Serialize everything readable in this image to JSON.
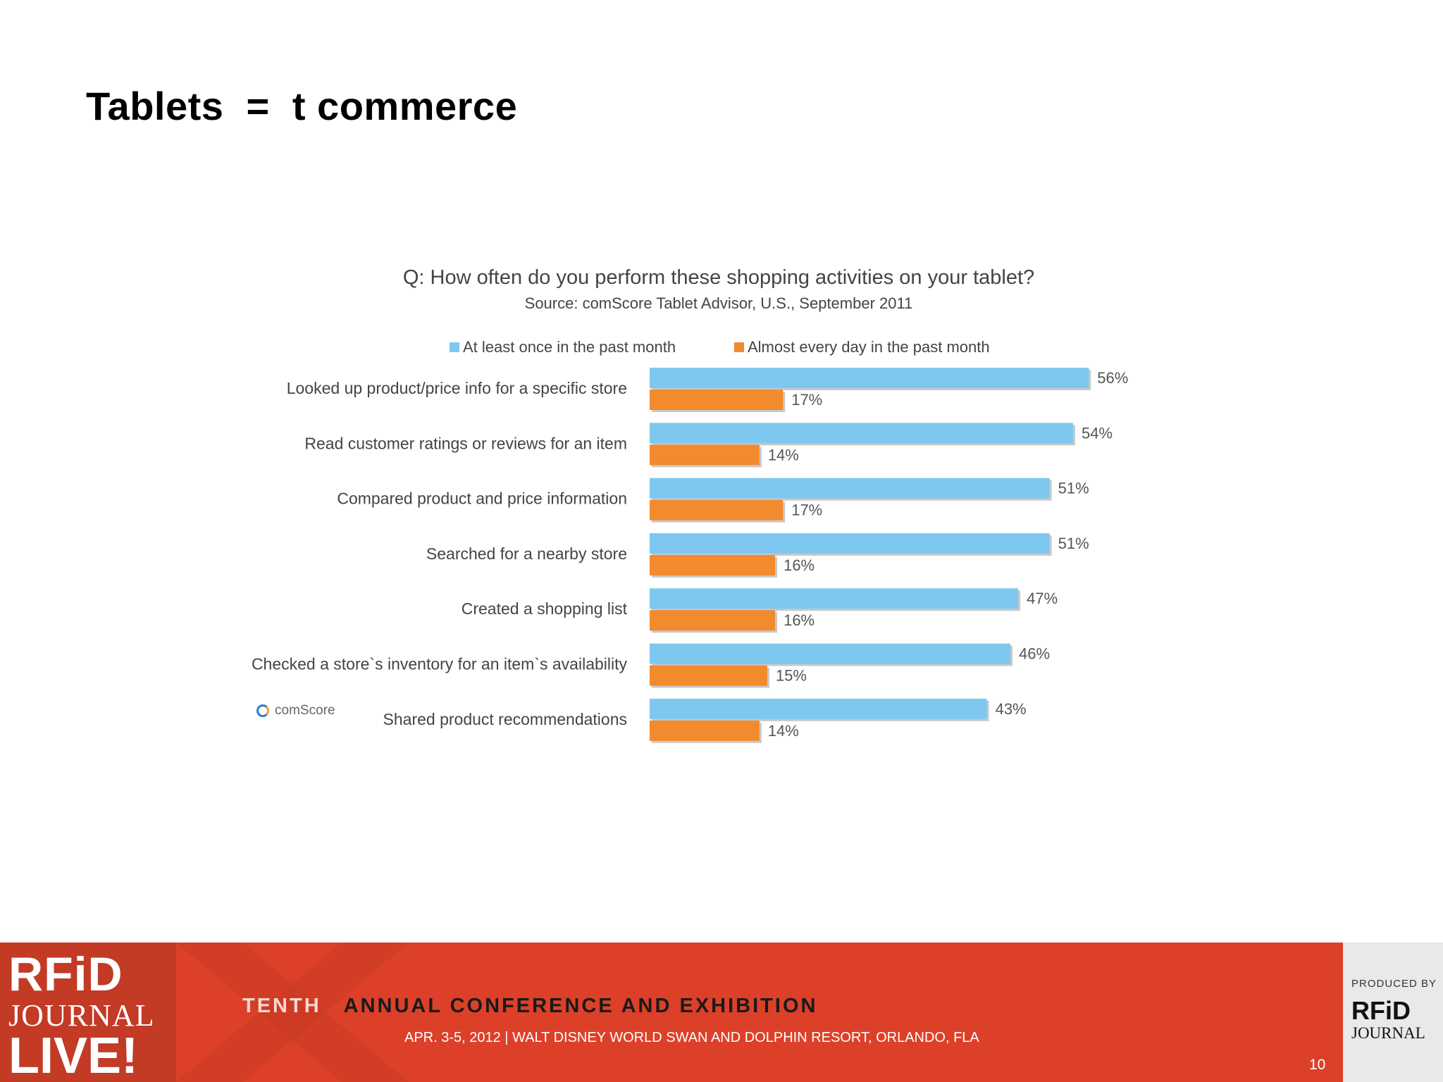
{
  "slide": {
    "title": "Tablets  =  t commerce",
    "page_number": "10"
  },
  "chart_data": {
    "type": "bar",
    "orientation": "horizontal",
    "title": "Q: How often do you perform these shopping activities on your tablet?",
    "subtitle": "Source: comScore Tablet Advisor, U.S., September 2011",
    "categories": [
      "Looked up product/price info for a specific store",
      "Read customer ratings or reviews for an item",
      "Compared product and price information",
      "Searched for a nearby store",
      "Created a shopping list",
      "Checked a store`s inventory for an item`s availability",
      "Shared product recommendations"
    ],
    "series": [
      {
        "name": "At least once in the past month",
        "color": "#7ec8f0",
        "values": [
          56,
          54,
          51,
          51,
          47,
          46,
          43
        ]
      },
      {
        "name": "Almost every day in the past month",
        "color": "#f28a2e",
        "values": [
          17,
          14,
          17,
          16,
          16,
          15,
          14
        ]
      }
    ],
    "data_labels": [
      [
        "56%",
        "54%",
        "51%",
        "51%",
        "47%",
        "46%",
        "43%"
      ],
      [
        "17%",
        "14%",
        "17%",
        "16%",
        "16%",
        "15%",
        "14%"
      ]
    ],
    "xlim": [
      0,
      60
    ],
    "legend_position": "top",
    "grid": false,
    "source_logo": "comScore"
  },
  "footer": {
    "logo_rfid": "RFiD",
    "logo_journal": "JOURNAL",
    "logo_live": "LIVE!",
    "conference_tenth": "TENTH",
    "conference_name": "ANNUAL CONFERENCE AND EXHIBITION",
    "conference_details": "APR. 3-5, 2012 | WALT DISNEY WORLD SWAN AND DOLPHIN RESORT, ORLANDO, FLA",
    "produced_by": "PRODUCED BY",
    "producer_rfid": "RFiD",
    "producer_journal": "JOURNAL"
  }
}
